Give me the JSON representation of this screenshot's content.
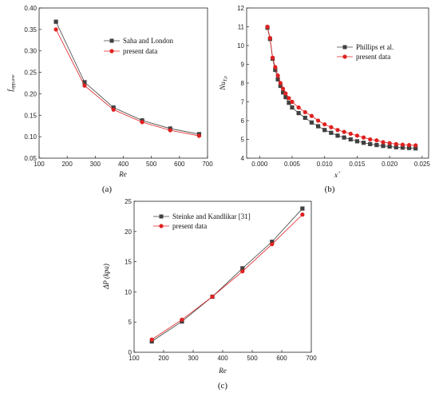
{
  "chart_data": [
    {
      "id": "a",
      "type": "line",
      "panel_label": "(a)",
      "xlabel": "Re",
      "ylabel_main": "f",
      "ylabel_sub": "app,ave",
      "xlim": [
        100,
        700
      ],
      "ylim": [
        0.05,
        0.4
      ],
      "xticks": [
        100,
        200,
        300,
        400,
        500,
        600,
        700
      ],
      "yticks": [
        0.05,
        0.1,
        0.15,
        0.2,
        0.25,
        0.3,
        0.35,
        0.4
      ],
      "xtick_labels": [
        "100",
        "200",
        "300",
        "400",
        "500",
        "600",
        "700"
      ],
      "ytick_labels": [
        "0.05",
        "0.10",
        "0.15",
        "0.20",
        "0.25",
        "0.30",
        "0.35",
        "0.40"
      ],
      "legend_position": "top-right",
      "series": [
        {
          "name": "Saha and London",
          "color": "#404040",
          "marker": "square",
          "x": [
            160,
            262,
            365,
            467,
            567,
            670
          ],
          "y": [
            0.368,
            0.227,
            0.168,
            0.138,
            0.119,
            0.106
          ]
        },
        {
          "name": "present data",
          "color": "#e02020",
          "marker": "circle",
          "x": [
            160,
            262,
            365,
            467,
            567,
            670
          ],
          "y": [
            0.35,
            0.219,
            0.163,
            0.134,
            0.115,
            0.102
          ]
        }
      ]
    },
    {
      "id": "b",
      "type": "line",
      "panel_label": "(b)",
      "xlabel_main": "x",
      "xlabel_sup": "+",
      "ylabel_main": "Nu",
      "ylabel_sub": "T,x",
      "xlim": [
        -0.002,
        0.026
      ],
      "ylim": [
        4,
        12
      ],
      "xticks": [
        0.0,
        0.005,
        0.01,
        0.015,
        0.02,
        0.025
      ],
      "yticks": [
        4,
        5,
        6,
        7,
        8,
        9,
        10,
        11,
        12
      ],
      "xtick_labels": [
        "0.000",
        "0.005",
        "0.010",
        "0.015",
        "0.020",
        "0.025"
      ],
      "ytick_labels": [
        "4",
        "5",
        "6",
        "7",
        "8",
        "9",
        "10",
        "11",
        "12"
      ],
      "legend_position": "top-right",
      "series": [
        {
          "name": "Phillips et al.",
          "color": "#404040",
          "marker": "square",
          "x": [
            0.0012,
            0.0016,
            0.002,
            0.0024,
            0.0028,
            0.0032,
            0.0036,
            0.004,
            0.0045,
            0.005,
            0.006,
            0.007,
            0.008,
            0.009,
            0.01,
            0.011,
            0.012,
            0.013,
            0.014,
            0.015,
            0.016,
            0.017,
            0.018,
            0.019,
            0.02,
            0.021,
            0.022,
            0.023,
            0.024
          ],
          "y": [
            10.95,
            10.35,
            9.3,
            8.7,
            8.2,
            7.85,
            7.5,
            7.25,
            6.95,
            6.7,
            6.4,
            6.15,
            5.9,
            5.7,
            5.5,
            5.35,
            5.2,
            5.1,
            5.0,
            4.9,
            4.82,
            4.75,
            4.7,
            4.65,
            4.62,
            4.58,
            4.56,
            4.54,
            4.52
          ]
        },
        {
          "name": "present data",
          "color": "#e02020",
          "marker": "circle",
          "x": [
            0.0012,
            0.0016,
            0.002,
            0.0024,
            0.0028,
            0.0032,
            0.0036,
            0.004,
            0.0045,
            0.005,
            0.006,
            0.007,
            0.008,
            0.009,
            0.01,
            0.011,
            0.012,
            0.013,
            0.014,
            0.015,
            0.016,
            0.017,
            0.018,
            0.019,
            0.02,
            0.021,
            0.022,
            0.023,
            0.024
          ],
          "y": [
            11.0,
            10.4,
            9.35,
            8.85,
            8.4,
            8.0,
            7.7,
            7.45,
            7.2,
            7.0,
            6.7,
            6.45,
            6.25,
            6.0,
            5.8,
            5.65,
            5.5,
            5.4,
            5.3,
            5.2,
            5.1,
            5.0,
            4.95,
            4.85,
            4.8,
            4.75,
            4.72,
            4.7,
            4.68
          ]
        }
      ]
    },
    {
      "id": "c",
      "type": "line",
      "panel_label": "(c)",
      "xlabel": "Re",
      "ylabel": "ΔP (kpa)",
      "xlim": [
        100,
        700
      ],
      "ylim": [
        0,
        25
      ],
      "xticks": [
        100,
        200,
        300,
        400,
        500,
        600,
        700
      ],
      "yticks": [
        0,
        5,
        10,
        15,
        20,
        25
      ],
      "xtick_labels": [
        "100",
        "200",
        "300",
        "400",
        "500",
        "600",
        "700"
      ],
      "ytick_labels": [
        "0",
        "5",
        "10",
        "15",
        "20",
        "25"
      ],
      "legend_position": "top-left",
      "series": [
        {
          "name": "Steinke and Kandlikar [31]",
          "color": "#404040",
          "marker": "square",
          "x": [
            160,
            262,
            365,
            467,
            567,
            670
          ],
          "y": [
            1.8,
            5.1,
            9.2,
            13.9,
            18.3,
            23.8
          ]
        },
        {
          "name": "present data",
          "color": "#e02020",
          "marker": "circle",
          "x": [
            160,
            262,
            365,
            467,
            567,
            670
          ],
          "y": [
            2.1,
            5.4,
            9.2,
            13.4,
            17.9,
            22.8
          ]
        }
      ]
    }
  ]
}
